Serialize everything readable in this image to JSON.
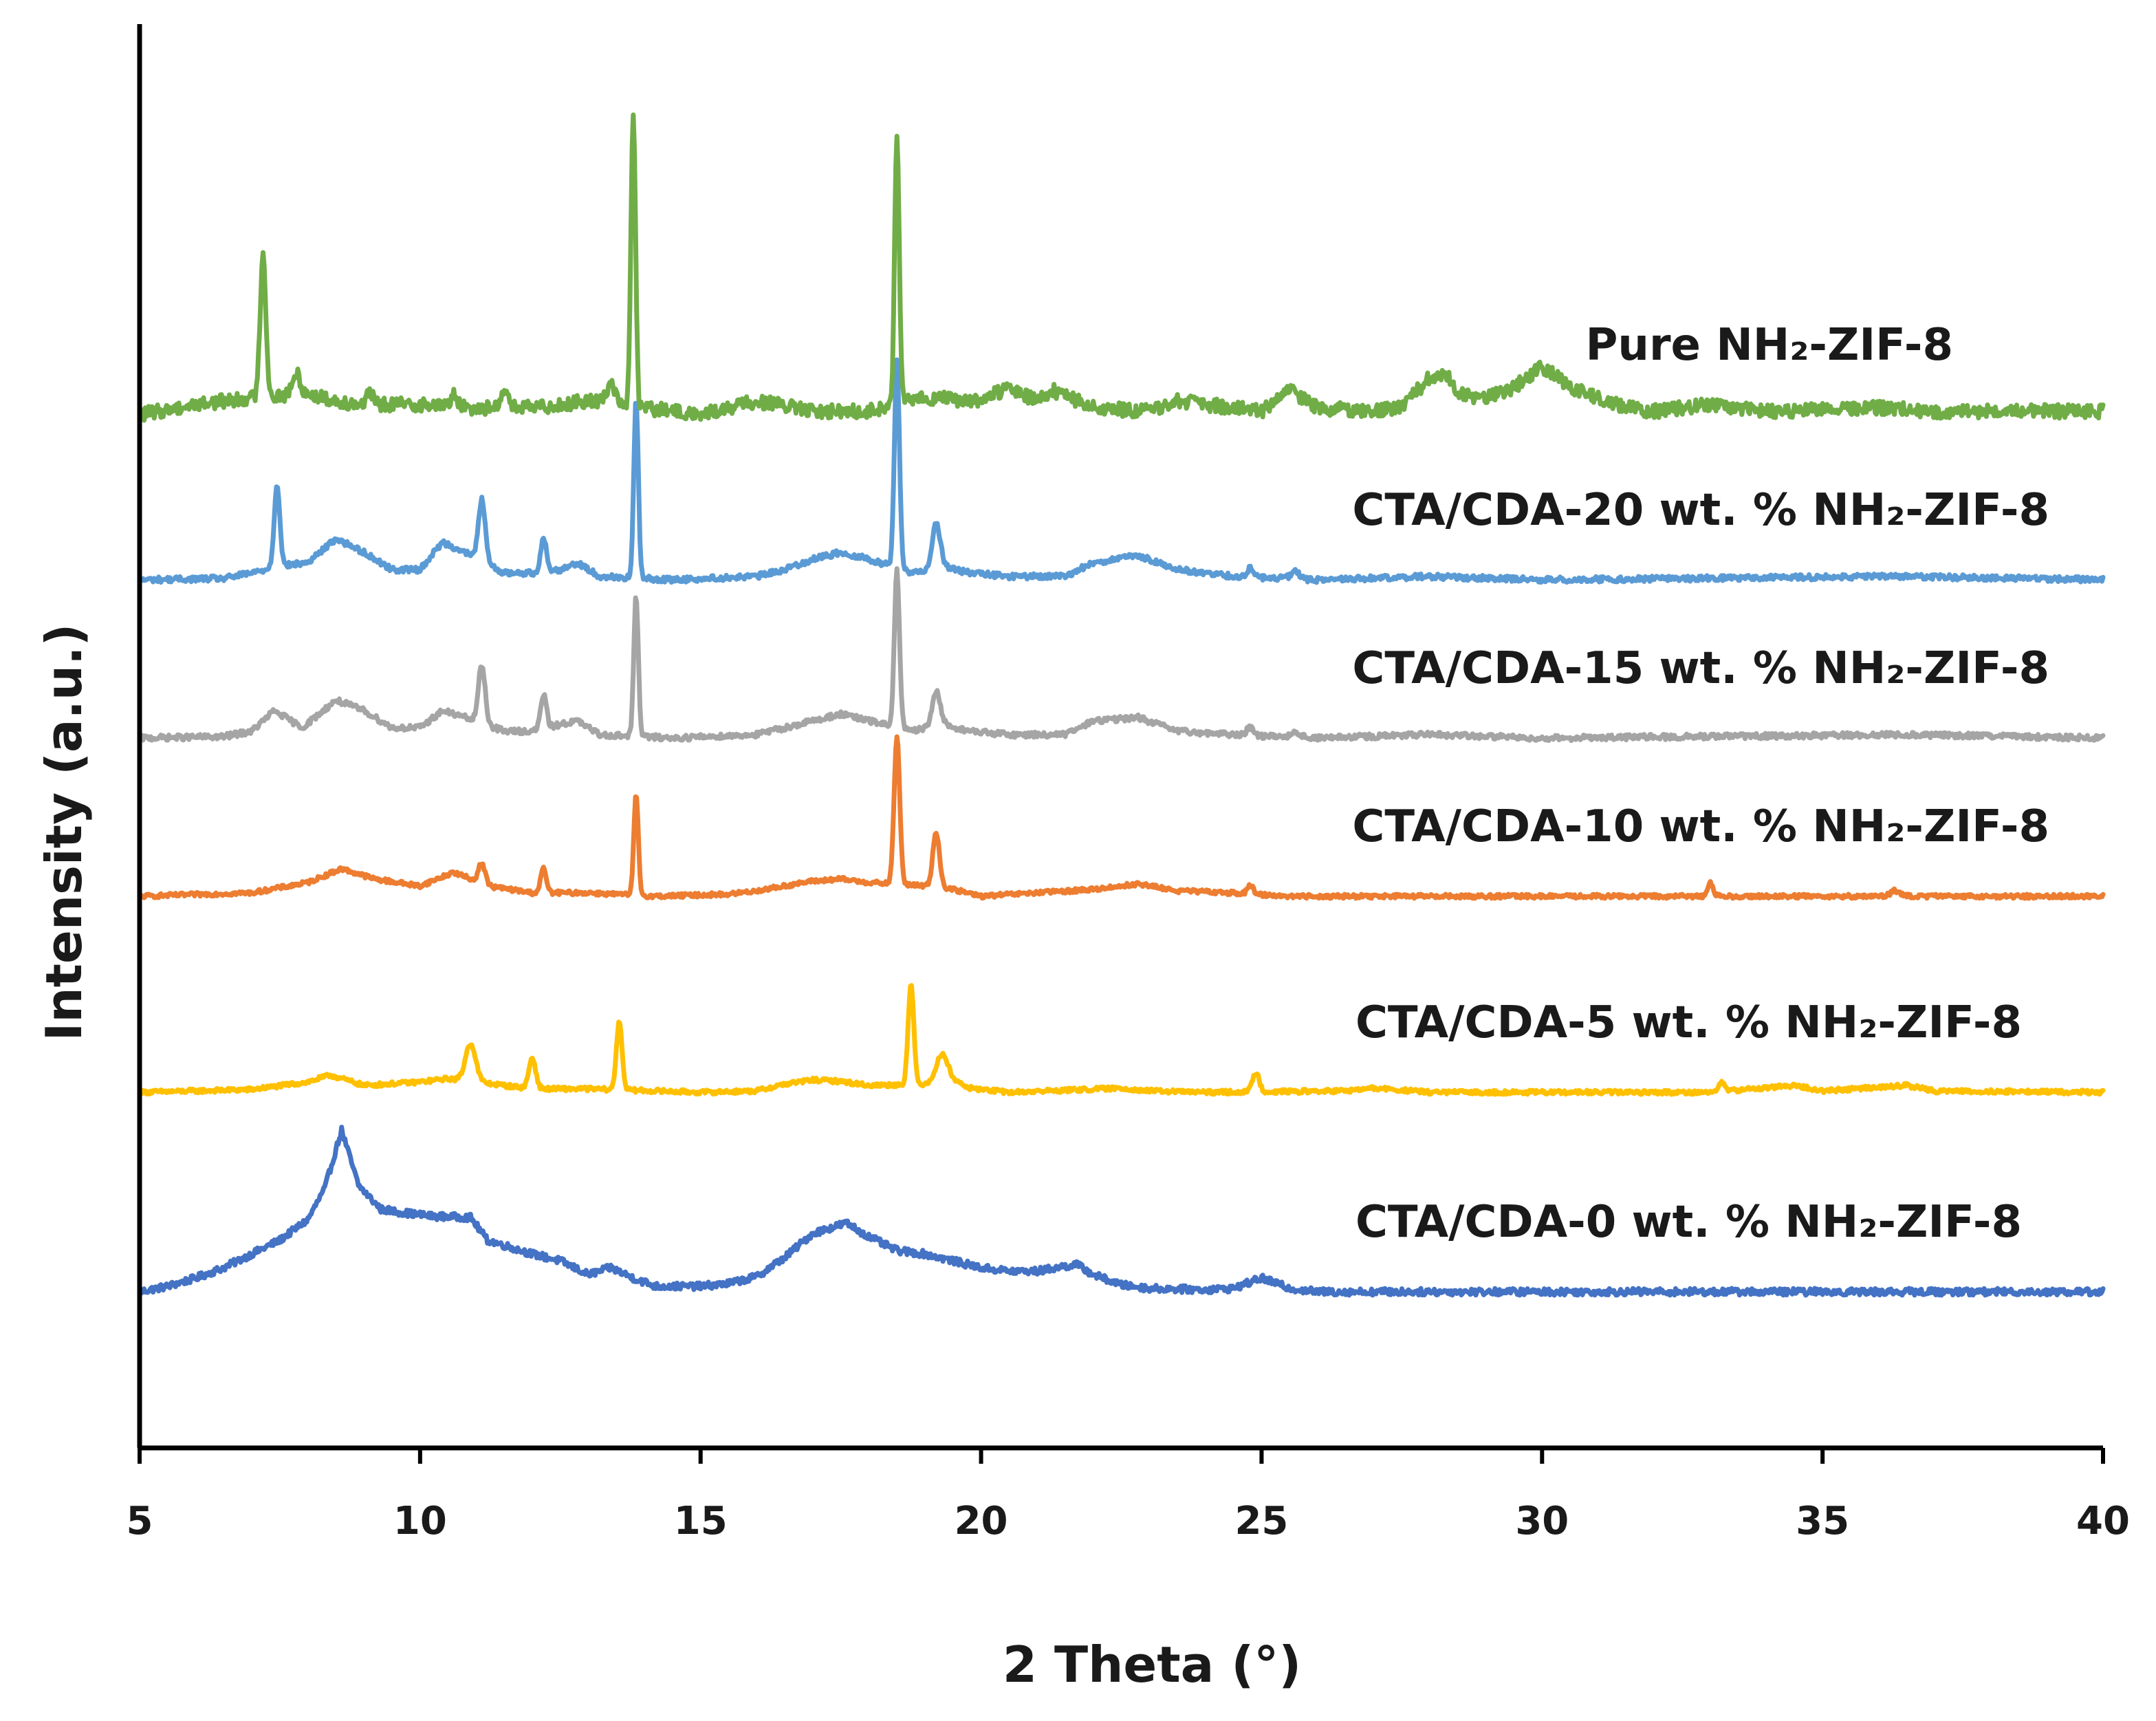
{
  "chart_data": {
    "type": "line",
    "title": "",
    "xlabel": "2 Theta (°)",
    "ylabel": "Intensity (a.u.)",
    "xlim": [
      5,
      40
    ],
    "xticks": [
      5,
      10,
      15,
      20,
      25,
      30,
      35,
      40
    ],
    "xtick_labels": [
      "5",
      "10",
      "15",
      "20",
      "25",
      "30",
      "35",
      "40"
    ],
    "grid": false,
    "series": [
      {
        "name": "CTA/CDA-0 wt. % NH₂-ZIF-8",
        "color": "#4472C4",
        "offset": 0,
        "noise": 5,
        "points": [
          [
            5,
            0
          ],
          [
            5.5,
            8
          ],
          [
            6,
            20
          ],
          [
            6.5,
            35
          ],
          [
            7,
            55
          ],
          [
            7.5,
            75
          ],
          [
            8,
            105
          ],
          [
            8.3,
            150
          ],
          [
            8.6,
            235
          ],
          [
            8.9,
            155
          ],
          [
            9.3,
            120
          ],
          [
            9.7,
            115
          ],
          [
            10.2,
            110
          ],
          [
            10.9,
            108
          ],
          [
            11.2,
            75
          ],
          [
            11.6,
            65
          ],
          [
            12,
            55
          ],
          [
            12.5,
            45
          ],
          [
            13,
            25
          ],
          [
            13.4,
            35
          ],
          [
            13.8,
            20
          ],
          [
            14.2,
            8
          ],
          [
            15,
            8
          ],
          [
            15.5,
            12
          ],
          [
            16,
            22
          ],
          [
            16.5,
            50
          ],
          [
            17,
            85
          ],
          [
            17.6,
            100
          ],
          [
            18,
            80
          ],
          [
            18.5,
            60
          ],
          [
            19,
            55
          ],
          [
            19.5,
            45
          ],
          [
            20,
            35
          ],
          [
            20.5,
            30
          ],
          [
            21,
            30
          ],
          [
            21.7,
            40
          ],
          [
            22,
            25
          ],
          [
            22.5,
            10
          ],
          [
            23,
            5
          ],
          [
            24,
            3
          ],
          [
            24.5,
            5
          ],
          [
            25,
            20
          ],
          [
            25.5,
            5
          ],
          [
            26,
            0
          ],
          [
            40,
            0
          ]
        ],
        "peaks": []
      },
      {
        "name": "CTA/CDA-5 wt. % NH₂-ZIF-8",
        "color": "#FFC000",
        "offset": 290,
        "noise": 3,
        "points": [
          [
            5,
            0
          ],
          [
            7,
            4
          ],
          [
            8,
            15
          ],
          [
            8.4,
            25
          ],
          [
            9,
            10
          ],
          [
            10,
            15
          ],
          [
            10.5,
            20
          ],
          [
            11.5,
            10
          ],
          [
            12,
            5
          ],
          [
            13,
            5
          ],
          [
            15,
            0
          ],
          [
            16,
            2
          ],
          [
            16.5,
            12
          ],
          [
            17,
            18
          ],
          [
            17.5,
            16
          ],
          [
            18,
            10
          ],
          [
            19,
            12
          ],
          [
            19.4,
            22
          ],
          [
            19.8,
            6
          ],
          [
            20.5,
            0
          ],
          [
            22.5,
            6
          ],
          [
            23,
            2
          ],
          [
            24,
            0
          ],
          [
            26.5,
            2
          ],
          [
            27,
            6
          ],
          [
            28,
            0
          ],
          [
            33,
            0
          ],
          [
            34.5,
            10
          ],
          [
            35,
            2
          ],
          [
            36.5,
            10
          ],
          [
            37,
            2
          ],
          [
            40,
            0
          ]
        ],
        "peaks": [
          [
            10.9,
            55,
            0.09
          ],
          [
            12,
            45,
            0.06
          ],
          [
            13.55,
            100,
            0.05
          ],
          [
            18.75,
            145,
            0.05
          ],
          [
            19.3,
            35,
            0.1
          ],
          [
            24.9,
            28,
            0.06
          ],
          [
            33.2,
            12,
            0.06
          ]
        ]
      },
      {
        "name": "CTA/CDA-10 wt. % NH₂-ZIF-8",
        "color": "#ED7D31",
        "offset": 575,
        "noise": 3,
        "points": [
          [
            5,
            0
          ],
          [
            7,
            5
          ],
          [
            8,
            20
          ],
          [
            8.6,
            40
          ],
          [
            9.2,
            25
          ],
          [
            10,
            15
          ],
          [
            10.6,
            35
          ],
          [
            11.2,
            15
          ],
          [
            12,
            5
          ],
          [
            13,
            5
          ],
          [
            14.2,
            0
          ],
          [
            15.5,
            3
          ],
          [
            16,
            8
          ],
          [
            16.5,
            15
          ],
          [
            17,
            22
          ],
          [
            17.5,
            25
          ],
          [
            18,
            20
          ],
          [
            19,
            15
          ],
          [
            19.5,
            10
          ],
          [
            20,
            0
          ],
          [
            22,
            10
          ],
          [
            22.8,
            18
          ],
          [
            23.5,
            8
          ],
          [
            24.5,
            5
          ],
          [
            25.5,
            0
          ],
          [
            40,
            0
          ]
        ],
        "peaks": [
          [
            11.1,
            30,
            0.06
          ],
          [
            12.2,
            35,
            0.05
          ],
          [
            13.85,
            145,
            0.04
          ],
          [
            18.5,
            215,
            0.05
          ],
          [
            19.2,
            80,
            0.06
          ],
          [
            24.8,
            12,
            0.05
          ],
          [
            33,
            20,
            0.05
          ],
          [
            36.3,
            8,
            0.08
          ]
        ]
      },
      {
        "name": "CTA/CDA-15 wt. % NH₂-ZIF-8",
        "color": "#A5A5A5",
        "offset": 805,
        "noise": 4,
        "points": [
          [
            5,
            0
          ],
          [
            6.5,
            2
          ],
          [
            7,
            10
          ],
          [
            7.4,
            40
          ],
          [
            7.9,
            15
          ],
          [
            8.5,
            55
          ],
          [
            9,
            40
          ],
          [
            9.5,
            15
          ],
          [
            10,
            15
          ],
          [
            10.4,
            40
          ],
          [
            10.8,
            30
          ],
          [
            11.5,
            10
          ],
          [
            12,
            10
          ],
          [
            12.5,
            20
          ],
          [
            12.8,
            25
          ],
          [
            13.2,
            5
          ],
          [
            14.5,
            0
          ],
          [
            16,
            5
          ],
          [
            16.5,
            15
          ],
          [
            17,
            25
          ],
          [
            17.5,
            35
          ],
          [
            18,
            25
          ],
          [
            18.8,
            10
          ],
          [
            19.3,
            20
          ],
          [
            19.8,
            10
          ],
          [
            20.5,
            5
          ],
          [
            21.5,
            5
          ],
          [
            22,
            25
          ],
          [
            22.8,
            30
          ],
          [
            23.5,
            10
          ],
          [
            24.5,
            5
          ],
          [
            26,
            0
          ],
          [
            28,
            5
          ],
          [
            30,
            0
          ],
          [
            36.5,
            5
          ],
          [
            40,
            0
          ]
        ],
        "peaks": [
          [
            11.1,
            85,
            0.06
          ],
          [
            12.2,
            50,
            0.05
          ],
          [
            13.85,
            205,
            0.04
          ],
          [
            18.5,
            230,
            0.045
          ],
          [
            19.2,
            50,
            0.07
          ],
          [
            24.8,
            12,
            0.06
          ],
          [
            25.6,
            8,
            0.08
          ]
        ]
      },
      {
        "name": "CTA/CDA-20 wt. % NH₂-ZIF-8",
        "color": "#5B9BD5",
        "offset": 1035,
        "noise": 4,
        "points": [
          [
            5,
            0
          ],
          [
            6.5,
            2
          ],
          [
            7,
            10
          ],
          [
            7.5,
            20
          ],
          [
            8,
            25
          ],
          [
            8.5,
            60
          ],
          [
            9,
            40
          ],
          [
            9.5,
            15
          ],
          [
            10,
            15
          ],
          [
            10.4,
            55
          ],
          [
            10.8,
            40
          ],
          [
            11.5,
            10
          ],
          [
            12,
            10
          ],
          [
            12.5,
            15
          ],
          [
            12.8,
            25
          ],
          [
            13.2,
            5
          ],
          [
            14.5,
            0
          ],
          [
            16,
            5
          ],
          [
            16.5,
            15
          ],
          [
            17,
            30
          ],
          [
            17.5,
            40
          ],
          [
            18,
            30
          ],
          [
            18.8,
            10
          ],
          [
            19.3,
            20
          ],
          [
            19.8,
            10
          ],
          [
            20.5,
            5
          ],
          [
            21.5,
            5
          ],
          [
            22,
            25
          ],
          [
            22.8,
            35
          ],
          [
            23.5,
            15
          ],
          [
            24.5,
            5
          ],
          [
            26,
            0
          ],
          [
            28,
            5
          ],
          [
            30,
            0
          ],
          [
            36.5,
            5
          ],
          [
            40,
            0
          ]
        ],
        "peaks": [
          [
            7.45,
            120,
            0.05
          ],
          [
            11.1,
            90,
            0.06
          ],
          [
            12.2,
            50,
            0.05
          ],
          [
            13.85,
            260,
            0.04
          ],
          [
            18.5,
            300,
            0.045
          ],
          [
            19.2,
            65,
            0.07
          ],
          [
            24.8,
            15,
            0.05
          ],
          [
            25.6,
            10,
            0.08
          ]
        ]
      },
      {
        "name": "Pure NH₂-ZIF-8",
        "color": "#70AD47",
        "offset": 1275,
        "noise": 10,
        "points": [
          [
            5,
            0
          ],
          [
            6,
            15
          ],
          [
            7,
            25
          ],
          [
            8,
            30
          ],
          [
            8.5,
            20
          ],
          [
            9,
            15
          ],
          [
            10,
            15
          ],
          [
            11,
            10
          ],
          [
            12,
            10
          ],
          [
            13,
            20
          ],
          [
            14,
            10
          ],
          [
            15,
            0
          ],
          [
            16,
            20
          ],
          [
            17,
            5
          ],
          [
            18,
            5
          ],
          [
            19,
            25
          ],
          [
            20,
            20
          ],
          [
            20.5,
            40
          ],
          [
            21,
            20
          ],
          [
            21.3,
            35
          ],
          [
            22,
            10
          ],
          [
            23,
            5
          ],
          [
            23.5,
            20
          ],
          [
            24,
            15
          ],
          [
            25,
            5
          ],
          [
            25.5,
            35
          ],
          [
            26,
            10
          ],
          [
            27,
            5
          ],
          [
            27.5,
            10
          ],
          [
            28,
            55
          ],
          [
            28.3,
            60
          ],
          [
            28.5,
            30
          ],
          [
            29,
            25
          ],
          [
            29.5,
            40
          ],
          [
            30,
            70
          ],
          [
            30.5,
            40
          ],
          [
            31,
            25
          ],
          [
            31.5,
            10
          ],
          [
            32,
            5
          ],
          [
            33,
            15
          ],
          [
            34,
            5
          ],
          [
            36,
            10
          ],
          [
            37,
            5
          ],
          [
            40,
            5
          ]
        ],
        "peaks": [
          [
            7.2,
            210,
            0.05
          ],
          [
            13.8,
            430,
            0.04
          ],
          [
            18.5,
            400,
            0.04
          ],
          [
            10.6,
            20,
            0.05
          ],
          [
            11.5,
            30,
            0.06
          ],
          [
            13.4,
            30,
            0.08
          ],
          [
            7.8,
            30,
            0.07
          ],
          [
            9.1,
            15,
            0.06
          ]
        ]
      }
    ]
  }
}
